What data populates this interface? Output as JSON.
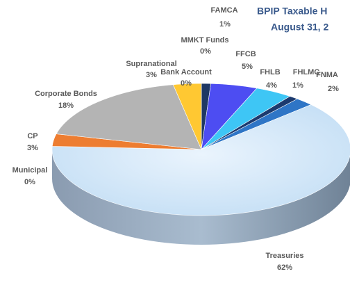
{
  "chart_data": {
    "type": "pie",
    "title": [
      "BPIP Taxable H",
      "August 31, 2"
    ],
    "categories": [
      "FAMCA",
      "FFCB",
      "FHLB",
      "FHLMC",
      "FNMA",
      "Treasuries",
      "Municipal",
      "CP",
      "Corporate Bonds",
      "Supranational",
      "Bank Account",
      "MMKT Funds"
    ],
    "values": [
      1,
      5,
      4,
      1,
      2,
      62,
      0,
      3,
      18,
      3,
      0,
      0
    ],
    "value_labels": [
      "1%",
      "5%",
      "4%",
      "1%",
      "2%",
      "62%",
      "0%",
      "3%",
      "18%",
      "3%",
      "0%",
      "0%"
    ],
    "colors": [
      "#1f3864",
      "#4d4df2",
      "#3ec6f5",
      "#1c3a6e",
      "#2e75c6",
      "#d9ecfb",
      "#2f5597",
      "#ed7d31",
      "#b4b4b4",
      "#ffc832",
      "#8faadc",
      "#4472c4"
    ]
  }
}
